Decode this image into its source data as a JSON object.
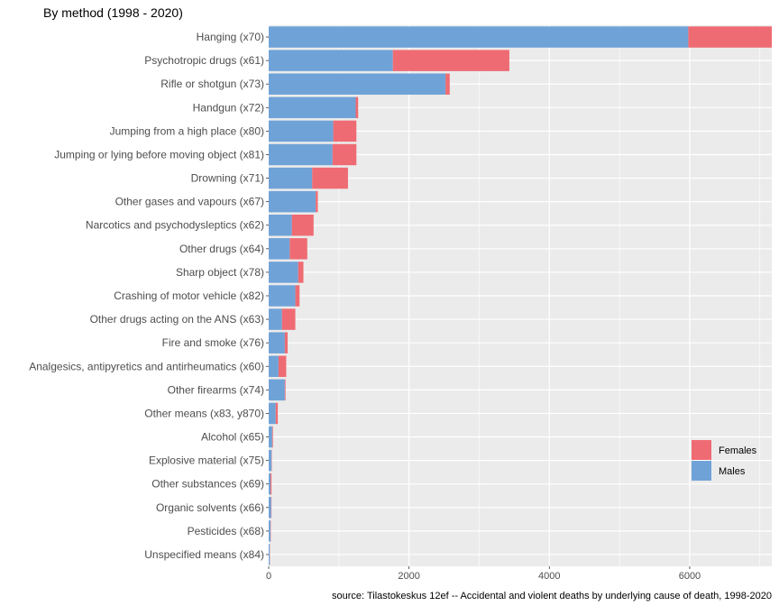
{
  "chart_data": {
    "type": "bar",
    "orientation": "horizontal",
    "stacked": true,
    "title": "By method (1998 - 2020)",
    "caption": "source: Tilastokeskus 12ef -- Accidental and violent deaths by underlying cause of death, 1998-2020",
    "categories": [
      "Hanging (x70)",
      "Psychotropic drugs (x61)",
      "Rifle or shotgun (x73)",
      "Handgun (x72)",
      "Jumping from a high place (x80)",
      "Jumping or lying before moving object (x81)",
      "Drowning (x71)",
      "Other gases and vapours (x67)",
      "Narcotics and psychodysleptics (x62)",
      "Other drugs (x64)",
      "Sharp object (x78)",
      "Crashing of motor vehicle (x82)",
      "Other drugs acting on the ANS (x63)",
      "Fire and smoke (x76)",
      "Analgesics, antipyretics and antirheumatics (x60)",
      "Other firearms (x74)",
      "Other means (x83, y870)",
      "Alcohol (x65)",
      "Explosive material (x75)",
      "Other substances (x69)",
      "Organic solvents (x66)",
      "Pesticides (x68)",
      "Unspecified means (x84)"
    ],
    "series": [
      {
        "name": "Males",
        "color": "#6fa3d8",
        "values": [
          5980,
          1770,
          2520,
          1240,
          920,
          910,
          620,
          670,
          330,
          300,
          420,
          380,
          190,
          230,
          140,
          230,
          100,
          50,
          40,
          25,
          35,
          25,
          15
        ]
      },
      {
        "name": "Females",
        "color": "#ef6b73",
        "values": [
          1190,
          1660,
          60,
          35,
          330,
          340,
          510,
          30,
          310,
          250,
          75,
          60,
          190,
          40,
          110,
          10,
          30,
          10,
          5,
          15,
          5,
          5,
          3
        ]
      }
    ],
    "xlim": [
      0,
      7170
    ],
    "xticks": [
      0,
      2000,
      4000,
      6000
    ],
    "xtick_labels": [
      "0",
      "2000",
      "4000",
      "6000"
    ],
    "grid": true,
    "legend_position": "bottom-right",
    "legend_order": [
      "Females",
      "Males"
    ],
    "panel_background": "#ebebeb",
    "grid_color": "#ffffff"
  }
}
